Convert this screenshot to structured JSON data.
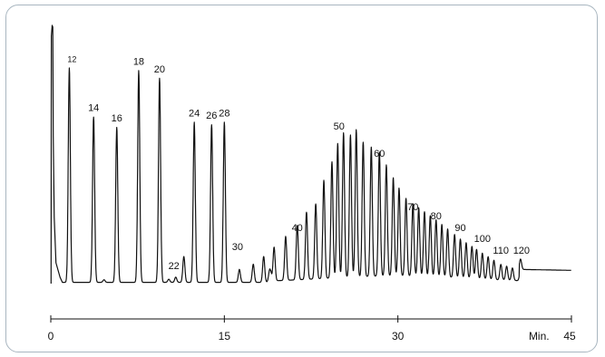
{
  "chart_data": {
    "type": "line",
    "title": "",
    "xlabel": "",
    "ylabel": "",
    "x_unit_label": "Min.",
    "xlim": [
      0,
      45
    ],
    "x_ticks": [
      {
        "value": 0,
        "label": "0"
      },
      {
        "value": 15,
        "label": "15"
      },
      {
        "value": 30,
        "label": "30"
      },
      {
        "value": 45,
        "label": "45"
      }
    ],
    "y_axis_visible": false,
    "grid": false,
    "baseline_level": 0.03,
    "peaks": [
      {
        "label": "12",
        "time": 1.6,
        "height": 0.83
      },
      {
        "label": "14",
        "time": 3.7,
        "height": 0.64
      },
      {
        "label": "16",
        "time": 5.7,
        "height": 0.6
      },
      {
        "label": "18",
        "time": 7.6,
        "height": 0.82
      },
      {
        "label": "20",
        "time": 9.4,
        "height": 0.79
      },
      {
        "label": "22",
        "time": 11.5,
        "height": 0.1
      },
      {
        "label": "24",
        "time": 12.4,
        "height": 0.62
      },
      {
        "label": "26",
        "time": 13.9,
        "height": 0.61
      },
      {
        "label": "28",
        "time": 15.0,
        "height": 0.62
      },
      {
        "label": "30",
        "time": 16.3,
        "height": 0.05
      },
      {
        "label": "40",
        "time": 21.3,
        "height": 0.21
      },
      {
        "label": "50",
        "time": 25.3,
        "height": 0.56
      },
      {
        "label": "60",
        "time": 28.4,
        "height": 0.48
      },
      {
        "label": "70",
        "time": 31.3,
        "height": 0.28
      },
      {
        "label": "80",
        "time": 33.3,
        "height": 0.22
      },
      {
        "label": "90",
        "time": 35.4,
        "height": 0.15
      },
      {
        "label": "100",
        "time": 37.3,
        "height": 0.1
      },
      {
        "label": "110",
        "time": 38.9,
        "height": 0.06
      },
      {
        "label": "120",
        "time": 40.6,
        "height": 0.04
      }
    ]
  }
}
